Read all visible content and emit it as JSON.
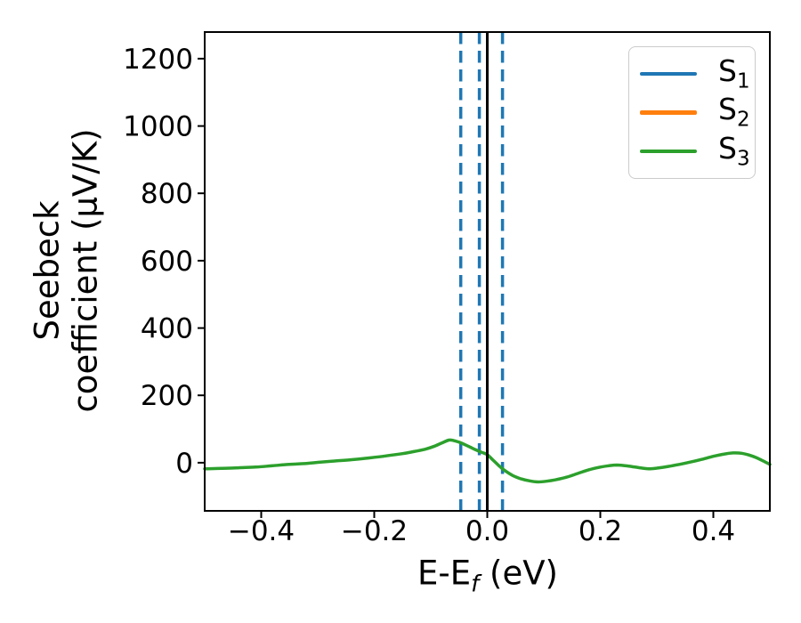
{
  "figure": {
    "background": "#ffffff",
    "ylabel": {
      "line1": "Seebeck",
      "line2": "coefficient (μV/K)"
    },
    "xlabel": {
      "pre": "E-E",
      "sub": "f",
      "post": " (eV)"
    },
    "legend": {
      "border_color": "#cbcbcb",
      "entries": [
        {
          "base": "S",
          "sub": "1",
          "color": "#1f77b4"
        },
        {
          "base": "S",
          "sub": "2",
          "color": "#ff7f0e"
        },
        {
          "base": "S",
          "sub": "3",
          "color": "#2ca02c"
        }
      ]
    }
  },
  "chart_data": {
    "type": "line",
    "title": "",
    "xlabel": "E-E_f (eV)",
    "ylabel": "Seebeck coefficient (μV/K)",
    "xlim": [
      -0.5,
      0.5
    ],
    "ylim": [
      -143,
      1279
    ],
    "grid": false,
    "legend_position": "upper right",
    "xticks": [
      -0.4,
      -0.2,
      0.0,
      0.2,
      0.4
    ],
    "xtick_labels": [
      "−0.4",
      "−0.2",
      "0.0",
      "0.2",
      "0.4"
    ],
    "yticks": [
      0,
      200,
      400,
      600,
      800,
      1000,
      1200
    ],
    "ytick_labels": [
      "0",
      "200",
      "400",
      "600",
      "800",
      "1000",
      "1200"
    ],
    "x": [
      -0.5,
      -0.47,
      -0.44,
      -0.41,
      -0.38,
      -0.35,
      -0.32,
      -0.3,
      -0.27,
      -0.24,
      -0.21,
      -0.18,
      -0.15,
      -0.13,
      -0.11,
      -0.095,
      -0.08,
      -0.068,
      -0.06,
      -0.05,
      -0.04,
      -0.03,
      -0.02,
      -0.01,
      0.0,
      0.01,
      0.02,
      0.03,
      0.045,
      0.06,
      0.075,
      0.09,
      0.105,
      0.12,
      0.14,
      0.16,
      0.18,
      0.2,
      0.215,
      0.23,
      0.25,
      0.27,
      0.285,
      0.3,
      0.32,
      0.34,
      0.36,
      0.38,
      0.4,
      0.42,
      0.435,
      0.45,
      0.47,
      0.485,
      0.5
    ],
    "series": [
      {
        "name": "S1",
        "color": "#1f77b4",
        "linestyle": "solid",
        "note": "curve not visibly distinct in plot (coincides with S3, hidden beneath)"
      },
      {
        "name": "S2",
        "color": "#ff7f0e",
        "linestyle": "solid",
        "note": "curve not visibly distinct in plot (coincides with S3, hidden beneath)"
      },
      {
        "name": "S3",
        "color": "#2ca02c",
        "linestyle": "solid",
        "y": [
          -18,
          -17,
          -15,
          -13,
          -9,
          -5,
          -2,
          1,
          5,
          9,
          14,
          20,
          27,
          33,
          40,
          48,
          59,
          67,
          66,
          61,
          54,
          46,
          38,
          31,
          24,
          8,
          -8,
          -22,
          -38,
          -48,
          -54,
          -57,
          -55,
          -51,
          -43,
          -32,
          -21,
          -13,
          -9,
          -7,
          -10,
          -15,
          -18,
          -16,
          -11,
          -5,
          2,
          10,
          19,
          26,
          29,
          28,
          19,
          8,
          -5
        ]
      }
    ],
    "vlines": [
      {
        "x": -0.047,
        "color": "#1f77b4",
        "linestyle": "dashed"
      },
      {
        "x": -0.014,
        "color": "#1f77b4",
        "linestyle": "dashed"
      },
      {
        "x": 0.027,
        "color": "#1f77b4",
        "linestyle": "dashed"
      },
      {
        "x": 0.0,
        "color": "#000000",
        "linestyle": "solid"
      }
    ]
  }
}
